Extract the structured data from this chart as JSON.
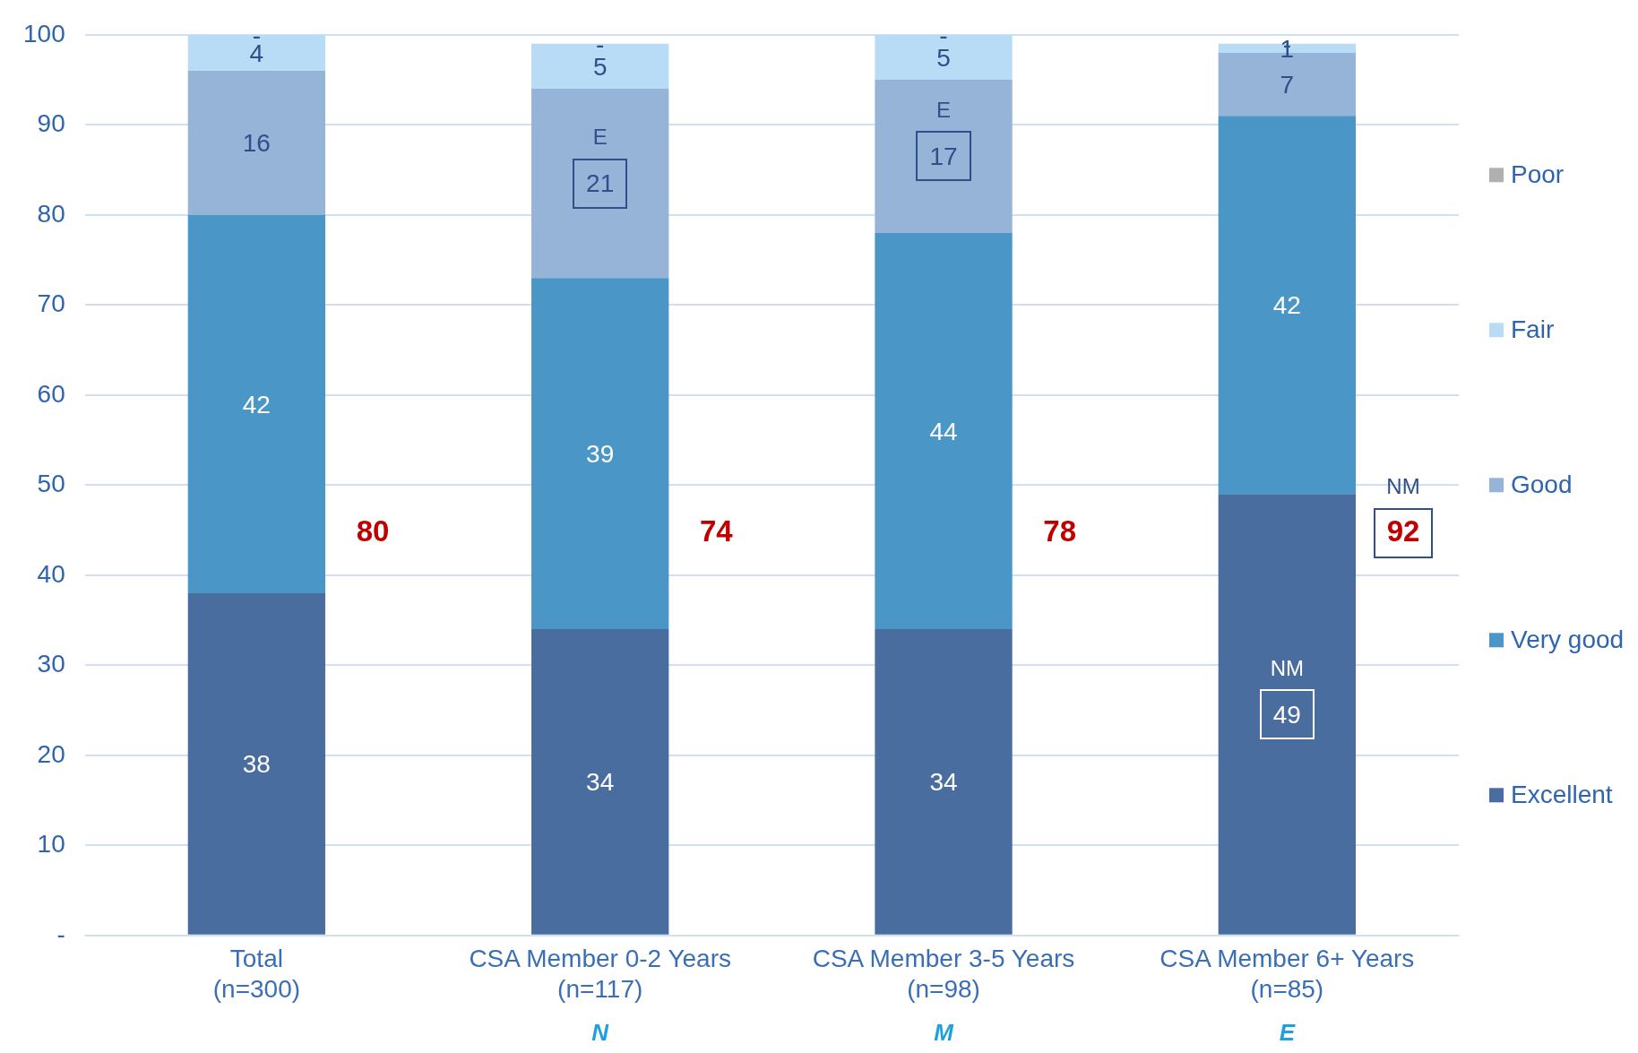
{
  "chart_data": {
    "type": "bar",
    "stacked": true,
    "categories": [
      "Total (n=300)",
      "CSA Member 0-2 Years (n=117)",
      "CSA Member 3-5 Years (n=98)",
      "CSA Member 6+ Years (n=85)"
    ],
    "series": [
      {
        "name": "Excellent",
        "color": "#4a6da0",
        "values": [
          38,
          34,
          34,
          49
        ]
      },
      {
        "name": "Very good",
        "color": "#4a96c6",
        "values": [
          42,
          39,
          44,
          42
        ]
      },
      {
        "name": "Good",
        "color": "#95b4d8",
        "values": [
          16,
          21,
          17,
          7
        ]
      },
      {
        "name": "Fair",
        "color": "#b8dcf5",
        "values": [
          4,
          5,
          5,
          1
        ]
      },
      {
        "name": "Poor",
        "color": "#b0b0b0",
        "values": [
          0,
          0,
          0,
          0
        ],
        "value_labels": [
          "-",
          "-",
          "-",
          "-"
        ]
      }
    ],
    "data_labels": true,
    "ylim": [
      0,
      100
    ],
    "yticks": [
      {
        "value": 0,
        "label": "-"
      },
      10,
      20,
      30,
      40,
      50,
      60,
      70,
      80,
      90,
      100
    ],
    "grid": "y",
    "legend": "right",
    "annotations": [
      "80",
      "74",
      "78",
      "92",
      "E",
      "E",
      "NM",
      "NM",
      "N",
      "M",
      "E"
    ]
  }
}
